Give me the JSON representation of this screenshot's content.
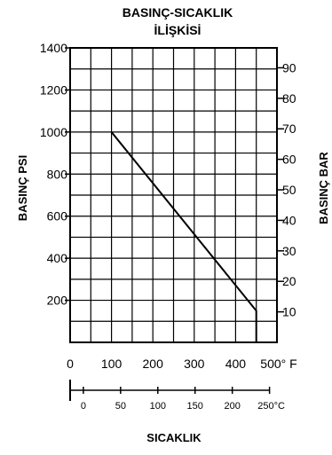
{
  "chart_data": {
    "type": "line",
    "title_line1": "BASINÇ-SICAKLIK",
    "title_line2": "İLİŞKİSİ",
    "ylabel_left": "BASINÇ PSI",
    "ylabel_right": "BASINÇ BAR",
    "xlabel": "SICAKLIK",
    "x_unit_f": "500° F",
    "x_unit_c": "250°C",
    "xlim_f": [
      0,
      500
    ],
    "ylim_psi": [
      0,
      1400
    ],
    "x_ticks_f": [
      "0",
      "100",
      "200",
      "300",
      "400"
    ],
    "x_ticks_c": [
      "0",
      "50",
      "100",
      "150",
      "200"
    ],
    "x_ticks_c_values": [
      0,
      50,
      100,
      150,
      200,
      250
    ],
    "y_ticks_psi": [
      "200",
      "400",
      "600",
      "800",
      "1000",
      "1200",
      "1400"
    ],
    "y_ticks_psi_values": [
      200,
      400,
      600,
      800,
      1000,
      1200,
      1400
    ],
    "y_ticks_bar": [
      "10",
      "20",
      "30",
      "40",
      "50",
      "60",
      "70",
      "80",
      "90"
    ],
    "y_ticks_bar_values": [
      10,
      20,
      30,
      40,
      50,
      60,
      70,
      80,
      90
    ],
    "grid": true,
    "series": [
      {
        "x": [
          100,
          450,
          450
        ],
        "y": [
          1000,
          150,
          0
        ]
      }
    ]
  }
}
